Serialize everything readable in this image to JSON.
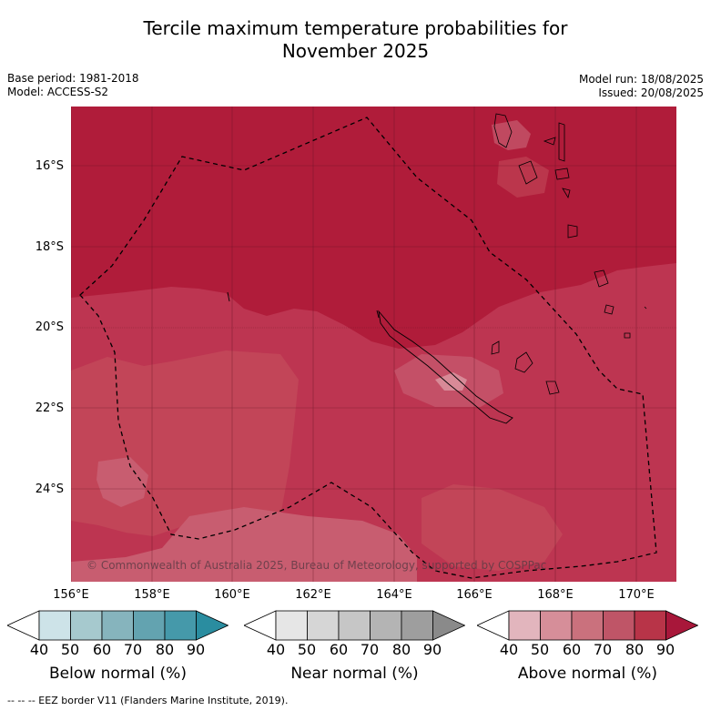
{
  "header": {
    "title_line1": "Tercile maximum temperature probabilities for",
    "title_line2": "November 2025",
    "base_period": "Base period: 1981-2018",
    "model": "Model: ACCESS-S2",
    "model_run": "Model run: 18/08/2025",
    "issued": "Issued: 20/08/2025"
  },
  "map": {
    "lat_labels": [
      "16°S",
      "18°S",
      "20°S",
      "22°S",
      "24°S"
    ],
    "lon_labels": [
      "156°E",
      "158°E",
      "160°E",
      "162°E",
      "164°E",
      "166°E",
      "168°E",
      "170°E"
    ],
    "copyright": "© Commonwealth of Australia 2025, Bureau of Meteorology, supported by COSPPac",
    "colors": {
      "above_90": "#b01c3a",
      "above_80": "#bd3551",
      "above_70": "#c85d70",
      "above_60": "#d88a97",
      "above_50": "#e3b4bc",
      "land_outline": "#000000",
      "eez_border": "#000000"
    }
  },
  "colorbars": [
    {
      "label": "Below normal (%)",
      "ticks": [
        "40",
        "50",
        "60",
        "70",
        "80",
        "90"
      ],
      "colors": [
        "#ffffff",
        "#cde3e8",
        "#a6c9ce",
        "#86b4bd",
        "#63a3b0",
        "#4599aa",
        "#2a8da0"
      ]
    },
    {
      "label": "Near normal (%)",
      "ticks": [
        "40",
        "50",
        "60",
        "70",
        "80",
        "90"
      ],
      "colors": [
        "#ffffff",
        "#e6e6e6",
        "#d6d6d6",
        "#c6c6c6",
        "#b4b4b4",
        "#9e9e9e",
        "#8a8a8a"
      ]
    },
    {
      "label": "Above normal (%)",
      "ticks": [
        "40",
        "50",
        "60",
        "70",
        "80",
        "90"
      ],
      "colors": [
        "#ffffff",
        "#e2b5bd",
        "#d68e99",
        "#ca717d",
        "#bf5567",
        "#b83448",
        "#a8173a"
      ]
    }
  ],
  "footer": {
    "legend_text": "--  --  -- EEZ border V11 (Flanders Marine Institute, 2019)."
  }
}
